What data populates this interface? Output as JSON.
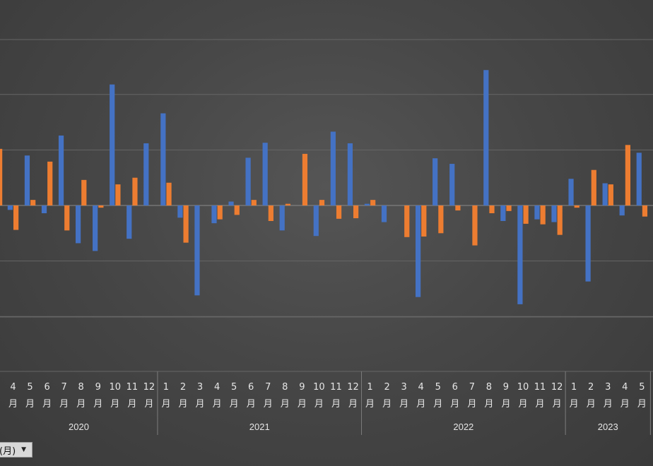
{
  "chart_data": {
    "type": "bar",
    "ylim": [
      -300,
      300
    ],
    "grid": true,
    "years": [
      {
        "label": "2020",
        "months": [
          "4\n月",
          "5\n月",
          "6\n月",
          "7\n月",
          "8\n月",
          "9\n月",
          "10\n月",
          "11\n月",
          "12\n月"
        ]
      },
      {
        "label": "2021",
        "months": [
          "1\n月",
          "2\n月",
          "3\n月",
          "4\n月",
          "5\n月",
          "6\n月",
          "7\n月",
          "8\n月",
          "9\n月",
          "10\n月",
          "11\n月",
          "12\n月"
        ]
      },
      {
        "label": "2022",
        "months": [
          "1\n月",
          "2\n月",
          "3\n月",
          "4\n月",
          "5\n月",
          "6\n月",
          "7\n月",
          "8\n月",
          "9\n月",
          "10\n月",
          "11\n月",
          "12\n月"
        ]
      },
      {
        "label": "2023",
        "months": [
          "1\n月",
          "2\n月",
          "3\n月",
          "4\n月",
          "5\n月"
        ]
      }
    ],
    "series": [
      {
        "color": "#4472C4",
        "values": [
          -8,
          90,
          -14,
          126,
          -68,
          -82,
          218,
          -60,
          112,
          166,
          -22,
          -162,
          -32,
          7,
          86,
          113,
          -45,
          0,
          -55,
          133,
          112,
          3,
          -30,
          0,
          -165,
          85,
          75,
          0,
          244,
          -28,
          -178,
          -25,
          -30,
          48,
          -137,
          40,
          -18,
          95,
          68
        ]
      },
      {
        "color": "#ED7D31",
        "values": [
          -44,
          10,
          79,
          -45,
          46,
          -4,
          38,
          50,
          0,
          41,
          -67,
          0,
          -25,
          -17,
          10,
          -28,
          3,
          93,
          10,
          -24,
          -23,
          10,
          0,
          -57,
          -56,
          -50,
          -9,
          -72,
          -14,
          -10,
          -33,
          -34,
          -53,
          -4,
          64,
          38,
          109,
          -20,
          47
        ]
      }
    ],
    "pre_start": {
      "series2_value": 102
    }
  },
  "field_button": {
    "label": "(月)",
    "arrow": "▼"
  }
}
